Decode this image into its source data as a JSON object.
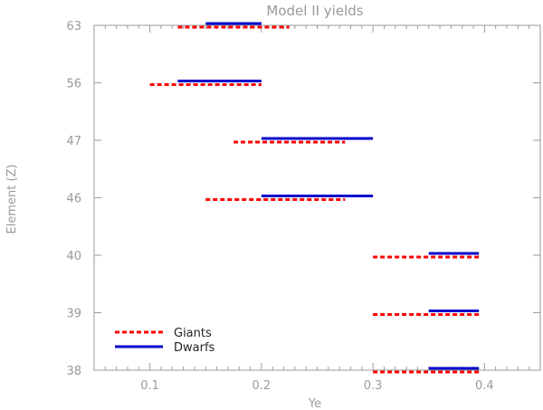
{
  "chart_data": {
    "type": "line",
    "title": "Model II yields",
    "xlabel": "Ye",
    "ylabel": "Element (Z)",
    "xlim": [
      0.05,
      0.45
    ],
    "x_ticks": [
      "0.1",
      "0.2",
      "0.3",
      "0.4"
    ],
    "x_tick_values": [
      0.1,
      0.2,
      0.3,
      0.4
    ],
    "categories": [
      "38",
      "39",
      "40",
      "46",
      "47",
      "56",
      "63"
    ],
    "legend_position": "bottom-left",
    "grid": false,
    "series": [
      {
        "name": "Giants",
        "color": "#ff0000",
        "style": "dashed",
        "segments": [
          {
            "element": "63",
            "x_start": 0.125,
            "x_end": 0.225
          },
          {
            "element": "56",
            "x_start": 0.1,
            "x_end": 0.2
          },
          {
            "element": "47",
            "x_start": 0.175,
            "x_end": 0.275
          },
          {
            "element": "46",
            "x_start": 0.15,
            "x_end": 0.275
          },
          {
            "element": "40",
            "x_start": 0.3,
            "x_end": 0.395
          },
          {
            "element": "39",
            "x_start": 0.3,
            "x_end": 0.395
          },
          {
            "element": "38",
            "x_start": 0.3,
            "x_end": 0.395
          }
        ]
      },
      {
        "name": "Dwarfs",
        "color": "#0000cc",
        "style": "solid",
        "segments": [
          {
            "element": "63",
            "x_start": 0.15,
            "x_end": 0.2
          },
          {
            "element": "56",
            "x_start": 0.125,
            "x_end": 0.2
          },
          {
            "element": "47",
            "x_start": 0.2,
            "x_end": 0.3
          },
          {
            "element": "46",
            "x_start": 0.2,
            "x_end": 0.3
          },
          {
            "element": "40",
            "x_start": 0.35,
            "x_end": 0.395
          },
          {
            "element": "39",
            "x_start": 0.35,
            "x_end": 0.395
          },
          {
            "element": "38",
            "x_start": 0.35,
            "x_end": 0.395
          }
        ]
      }
    ]
  }
}
